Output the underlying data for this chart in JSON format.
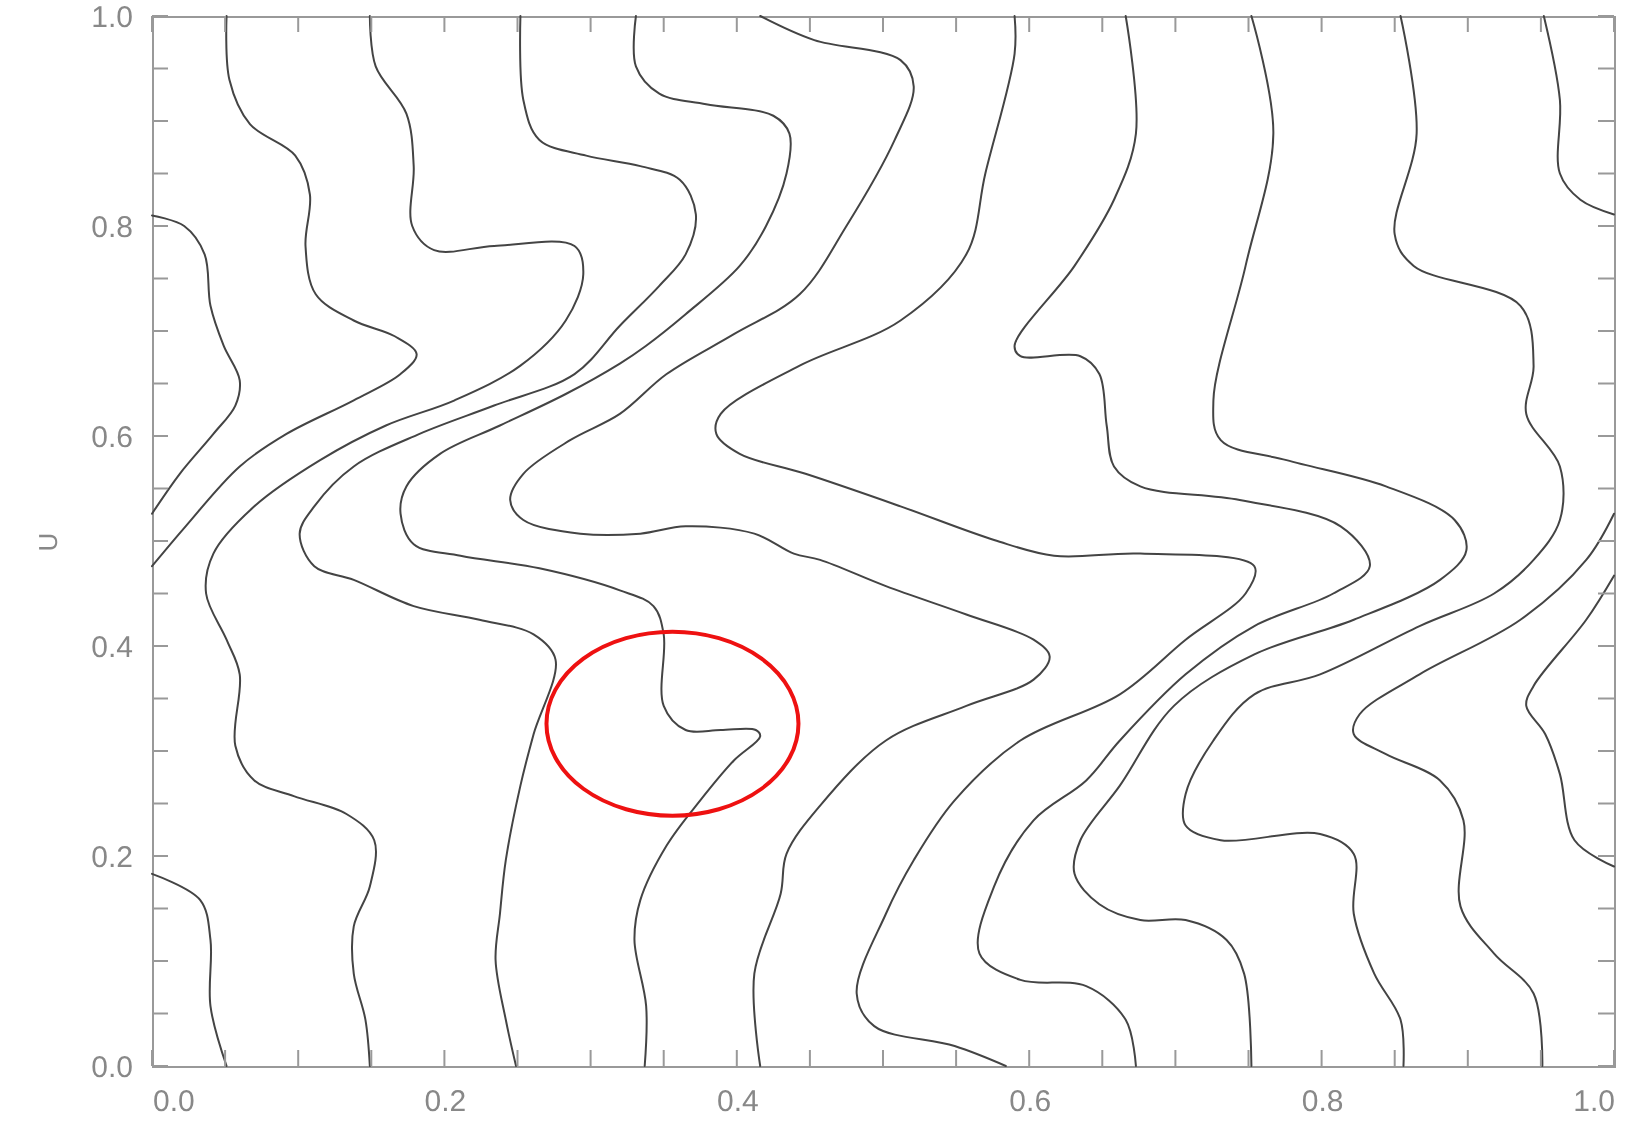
{
  "chart_data": {
    "type": "line",
    "ylabel": "U",
    "xlim": [
      0,
      1
    ],
    "ylim": [
      0,
      1
    ],
    "grid": false,
    "marker": "none",
    "line_style": "solid",
    "xticks": [
      {
        "value": 0,
        "label": "0.0"
      },
      {
        "value": 0.05,
        "label": null
      },
      {
        "value": 0.1,
        "label": null
      },
      {
        "value": 0.15,
        "label": null
      },
      {
        "value": 0.2,
        "label": "0.2"
      },
      {
        "value": 0.25,
        "label": null
      },
      {
        "value": 0.3,
        "label": null
      },
      {
        "value": 0.35,
        "label": null
      },
      {
        "value": 0.4,
        "label": "0.4"
      },
      {
        "value": 0.45,
        "label": null
      },
      {
        "value": 0.5,
        "label": null
      },
      {
        "value": 0.55,
        "label": null
      },
      {
        "value": 0.6,
        "label": "0.6"
      },
      {
        "value": 0.65,
        "label": null
      },
      {
        "value": 0.7,
        "label": null
      },
      {
        "value": 0.75,
        "label": null
      },
      {
        "value": 0.8,
        "label": "0.8"
      },
      {
        "value": 0.85,
        "label": null
      },
      {
        "value": 0.9,
        "label": null
      },
      {
        "value": 0.95,
        "label": null
      },
      {
        "value": 1,
        "label": "1.0"
      }
    ],
    "yticks": [
      {
        "value": 0,
        "label": "0.0"
      },
      {
        "value": 0.05,
        "label": null
      },
      {
        "value": 0.1,
        "label": null
      },
      {
        "value": 0.15,
        "label": null
      },
      {
        "value": 0.2,
        "label": "0.2"
      },
      {
        "value": 0.25,
        "label": null
      },
      {
        "value": 0.3,
        "label": null
      },
      {
        "value": 0.35,
        "label": null
      },
      {
        "value": 0.4,
        "label": "0.4"
      },
      {
        "value": 0.45,
        "label": null
      },
      {
        "value": 0.5,
        "label": null
      },
      {
        "value": 0.55,
        "label": null
      },
      {
        "value": 0.6,
        "label": "0.6"
      },
      {
        "value": 0.65,
        "label": null
      },
      {
        "value": 0.7,
        "label": null
      },
      {
        "value": 0.75,
        "label": null
      },
      {
        "value": 0.8,
        "label": "0.8"
      },
      {
        "value": 0.85,
        "label": null
      },
      {
        "value": 0.9,
        "label": null
      },
      {
        "value": 0.95,
        "label": null
      },
      {
        "value": 1,
        "label": "1.0"
      }
    ],
    "series": [
      {
        "color": "#444444",
        "x": [
          0,
          0.022,
          0.036,
          0.04,
          0.049,
          0.06,
          0.057,
          0.042,
          0.019,
          0
        ],
        "values": [
          0.81,
          0.8,
          0.773,
          0.724,
          0.686,
          0.653,
          0.629,
          0.602,
          0.564,
          0.526
        ]
      },
      {
        "color": "#444444",
        "x": [
          0.051,
          0.053,
          0.067,
          0.098,
          0.108,
          0.105,
          0.112,
          0.138,
          0.166,
          0.181,
          0.17,
          0.138,
          0.092,
          0.06,
          0.023,
          0
        ],
        "values": [
          1,
          0.939,
          0.897,
          0.867,
          0.83,
          0.781,
          0.735,
          0.71,
          0.695,
          0.678,
          0.659,
          0.634,
          0.602,
          0.571,
          0.514,
          0.476
        ]
      },
      {
        "color": "#444444",
        "x": [
          0.149,
          0.153,
          0.174,
          0.179,
          0.178,
          0.193,
          0.234,
          0.289,
          0.295,
          0.283,
          0.252,
          0.207,
          0.16,
          0.115,
          0.07,
          0.042,
          0.037,
          0.051,
          0.06,
          0.057,
          0.07,
          0.097,
          0.133,
          0.152,
          0.149,
          0.138,
          0.138,
          0.146,
          0.149
        ],
        "values": [
          1,
          0.952,
          0.907,
          0.857,
          0.8,
          0.777,
          0.781,
          0.781,
          0.754,
          0.71,
          0.667,
          0.634,
          0.61,
          0.577,
          0.533,
          0.488,
          0.45,
          0.406,
          0.373,
          0.305,
          0.272,
          0.257,
          0.24,
          0.215,
          0.171,
          0.133,
          0.088,
          0.044,
          0
        ]
      },
      {
        "color": "#444444",
        "x": [
          0,
          0.033,
          0.04,
          0.04,
          0.051
        ],
        "values": [
          0.183,
          0.158,
          0.12,
          0.057,
          0
        ]
      },
      {
        "color": "#444444",
        "x": [
          0.252,
          0.254,
          0.265,
          0.297,
          0.334,
          0.361,
          0.372,
          0.365,
          0.347,
          0.32,
          0.289,
          0.234,
          0.183,
          0.138,
          0.111,
          0.101,
          0.111,
          0.138,
          0.179,
          0.224,
          0.261,
          0.276,
          0.261,
          0.252,
          0.242,
          0.238,
          0.235,
          0.242,
          0.249
        ],
        "values": [
          1,
          0.92,
          0.882,
          0.867,
          0.857,
          0.844,
          0.811,
          0.773,
          0.743,
          0.705,
          0.659,
          0.629,
          0.602,
          0.571,
          0.533,
          0.507,
          0.476,
          0.463,
          0.438,
          0.425,
          0.411,
          0.387,
          0.316,
          0.267,
          0.196,
          0.145,
          0.101,
          0.044,
          0
        ]
      },
      {
        "color": "#444444",
        "x": [
          0.331,
          0.331,
          0.347,
          0.379,
          0.425,
          0.436,
          0.434,
          0.42,
          0.402,
          0.365,
          0.338,
          0.32,
          0.283,
          0.238,
          0.197,
          0.174,
          0.17,
          0.179,
          0.211,
          0.265,
          0.32,
          0.343,
          0.35,
          0.35,
          0.365,
          0.389,
          0.413,
          0.416,
          0.398,
          0.375,
          0.352,
          0.334,
          0.33,
          0.338,
          0.337
        ],
        "values": [
          1,
          0.952,
          0.926,
          0.916,
          0.905,
          0.888,
          0.85,
          0.8,
          0.762,
          0.716,
          0.686,
          0.669,
          0.64,
          0.61,
          0.583,
          0.552,
          0.526,
          0.497,
          0.486,
          0.474,
          0.453,
          0.438,
          0.411,
          0.343,
          0.32,
          0.32,
          0.32,
          0.314,
          0.291,
          0.253,
          0.21,
          0.158,
          0.12,
          0.057,
          0
        ]
      },
      {
        "color": "#444444",
        "x": [
          0.416,
          0.453,
          0.512,
          0.521,
          0.508,
          0.475,
          0.443,
          0.398,
          0.352,
          0.32,
          0.286,
          0.254,
          0.245,
          0.254,
          0.293,
          0.334,
          0.365,
          0.412,
          0.439,
          0.457,
          0.502,
          0.557,
          0.603,
          0.614,
          0.603,
          0.557,
          0.502,
          0.457,
          0.434,
          0.43,
          0.412,
          0.416
        ],
        "values": [
          1,
          0.977,
          0.958,
          0.933,
          0.882,
          0.8,
          0.735,
          0.697,
          0.659,
          0.621,
          0.596,
          0.564,
          0.539,
          0.52,
          0.507,
          0.507,
          0.514,
          0.507,
          0.488,
          0.482,
          0.457,
          0.43,
          0.406,
          0.39,
          0.368,
          0.343,
          0.31,
          0.248,
          0.202,
          0.164,
          0.088,
          0
        ]
      },
      {
        "color": "#444444",
        "x": [
          0.59,
          0.59,
          0.57,
          0.557,
          0.512,
          0.443,
          0.389,
          0.386,
          0.402,
          0.447,
          0.512,
          0.576,
          0.617,
          0.676,
          0.754,
          0.748,
          0.707,
          0.662,
          0.594,
          0.549,
          0.521,
          0.502,
          0.482,
          0.494,
          0.549,
          0.584
        ],
        "values": [
          1,
          0.964,
          0.85,
          0.773,
          0.71,
          0.667,
          0.621,
          0.602,
          0.583,
          0.564,
          0.533,
          0.501,
          0.486,
          0.488,
          0.476,
          0.45,
          0.406,
          0.354,
          0.31,
          0.253,
          0.196,
          0.145,
          0.069,
          0.038,
          0.019,
          0
        ]
      },
      {
        "color": "#444444",
        "x": [
          0.666,
          0.673,
          0.658,
          0.631,
          0.59,
          0.594,
          0.635,
          0.648,
          0.653,
          0.658,
          0.676,
          0.744,
          0.813,
          0.833,
          0.808,
          0.754,
          0.707,
          0.662,
          0.639,
          0.603,
          0.576,
          0.566,
          0.594,
          0.639,
          0.666,
          0.673
        ],
        "values": [
          1,
          0.888,
          0.825,
          0.762,
          0.686,
          0.676,
          0.676,
          0.659,
          0.61,
          0.571,
          0.552,
          0.539,
          0.514,
          0.476,
          0.45,
          0.419,
          0.373,
          0.31,
          0.272,
          0.234,
          0.171,
          0.107,
          0.082,
          0.076,
          0.044,
          0
        ]
      },
      {
        "color": "#444444",
        "x": [
          0.752,
          0.767,
          0.748,
          0.726,
          0.731,
          0.776,
          0.844,
          0.891,
          0.899,
          0.881,
          0.822,
          0.754,
          0.699,
          0.662,
          0.635,
          0.631,
          0.648,
          0.676,
          0.707,
          0.735,
          0.747,
          0.752
        ],
        "values": [
          1,
          0.888,
          0.762,
          0.634,
          0.596,
          0.577,
          0.552,
          0.52,
          0.491,
          0.463,
          0.425,
          0.392,
          0.343,
          0.267,
          0.215,
          0.183,
          0.154,
          0.139,
          0.139,
          0.12,
          0.088,
          0
        ]
      },
      {
        "color": "#444444",
        "x": [
          0.854,
          0.865,
          0.85,
          0.863,
          0.936,
          0.945,
          0.94,
          0.963,
          0.963,
          0.945,
          0.918,
          0.867,
          0.799,
          0.754,
          0.726,
          0.707,
          0.707,
          0.731,
          0.799,
          0.822,
          0.822,
          0.836,
          0.854,
          0.856
        ],
        "values": [
          1,
          0.888,
          0.792,
          0.762,
          0.724,
          0.667,
          0.621,
          0.571,
          0.52,
          0.482,
          0.45,
          0.419,
          0.373,
          0.354,
          0.31,
          0.259,
          0.229,
          0.215,
          0.221,
          0.202,
          0.145,
          0.088,
          0.044,
          0
        ]
      },
      {
        "color": "#444444",
        "x": [
          1,
          0.981,
          0.936,
          0.867,
          0.826,
          0.822,
          0.844,
          0.881,
          0.897,
          0.895,
          0.918,
          0.945,
          0.951
        ],
        "values": [
          0.526,
          0.482,
          0.425,
          0.373,
          0.335,
          0.316,
          0.297,
          0.272,
          0.234,
          0.152,
          0.107,
          0.069,
          0
        ]
      },
      {
        "color": "#444444",
        "x": [
          0.952,
          0.963,
          0.963,
          0.977,
          1
        ],
        "values": [
          1,
          0.92,
          0.85,
          0.825,
          0.811
        ]
      },
      {
        "color": "#444444",
        "x": [
          1,
          0.981,
          0.945,
          0.94,
          0.953,
          0.963,
          0.973,
          1
        ],
        "values": [
          0.467,
          0.425,
          0.362,
          0.343,
          0.316,
          0.278,
          0.215,
          0.19
        ]
      }
    ]
  }
}
